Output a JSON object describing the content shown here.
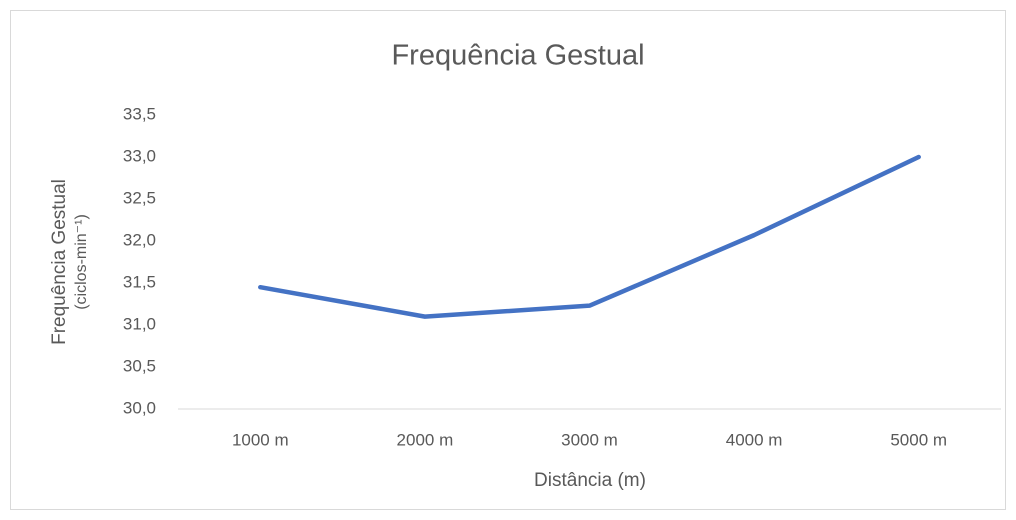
{
  "chart_data": {
    "type": "line",
    "title": "Frequência Gestual",
    "xlabel": "Distância (m)",
    "ylabel": [
      "Frequência Gestual",
      "(ciclos-min⁻¹)"
    ],
    "categories": [
      "1000 m",
      "2000 m",
      "3000 m",
      "4000 m",
      "5000 m"
    ],
    "values": [
      31.45,
      31.1,
      31.23,
      32.07,
      33.0
    ],
    "color": "#4472c4",
    "ylim": [
      30,
      33.5
    ],
    "yticks": [
      {
        "value": 30,
        "label": "30,0"
      },
      {
        "value": 30.5,
        "label": "30,5"
      },
      {
        "value": 31,
        "label": "31,0"
      },
      {
        "value": 31.5,
        "label": "31,5"
      },
      {
        "value": 32,
        "label": "32,0"
      },
      {
        "value": 32.5,
        "label": "32,5"
      },
      {
        "value": 33,
        "label": "33,0"
      },
      {
        "value": 33.5,
        "label": "33,5"
      }
    ],
    "grid": false
  }
}
